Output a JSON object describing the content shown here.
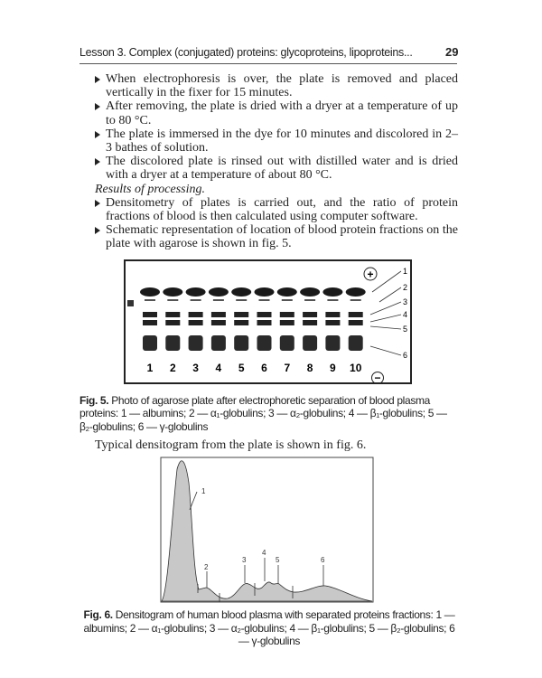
{
  "header": {
    "title": "Lesson 3. Complex (conjugated) proteins: glycoproteins, lipoproteins...",
    "page_number": "29"
  },
  "body": {
    "items_a": [
      "When electrophoresis is over, the plate is removed and placed vertically in the fixer for 15 minutes.",
      "After removing, the plate is dried with a dryer at a temperature of up to 80 °C.",
      "The plate is immersed in the dye for 10 minutes and discolored in 2–3 bathes of solution.",
      "The discolored plate is rinsed out with distilled water and is dried with a dryer at a temperature of about 80 °C."
    ],
    "subheading": "Results of processing.",
    "items_b": [
      "Densitometry of plates is carried out, and the ratio of protein fractions of blood is then calculated using computer software.",
      "Schematic representation of location of blood protein fractions on the plate with agarose is shown in fig. 5."
    ]
  },
  "fig5": {
    "plus_symbol": "+",
    "minus_symbol": "−",
    "lane_labels": [
      "1",
      "2",
      "3",
      "4",
      "5",
      "6",
      "7",
      "8",
      "9",
      "10"
    ],
    "band_labels": [
      "1",
      "2",
      "3",
      "4",
      "5",
      "6"
    ],
    "caption_label": "Fig. 5.",
    "caption_text": "Photo of agarose plate after electrophoretic separation of blood plasma proteins: 1 — albumins; 2 — α₁-globulins; 3 — α₂-globulins; 4 — β₁-globulins; 5 — β₂-globulins; 6 — γ-globulins"
  },
  "intro_fig6": "Typical densitogram from the plate is shown in fig. 6.",
  "fig6": {
    "peak_labels": [
      "1",
      "2",
      "3",
      "4",
      "5",
      "6"
    ],
    "caption_label": "Fig. 6.",
    "caption_text": "Densitogram of human blood plasma with separated proteins fractions: 1 — albumins; 2 — α₁-globulins; 3 — α₂-globulins; 4 — β₁-globulins; 5 — β₂-globulins; 6 — γ-globulins"
  }
}
